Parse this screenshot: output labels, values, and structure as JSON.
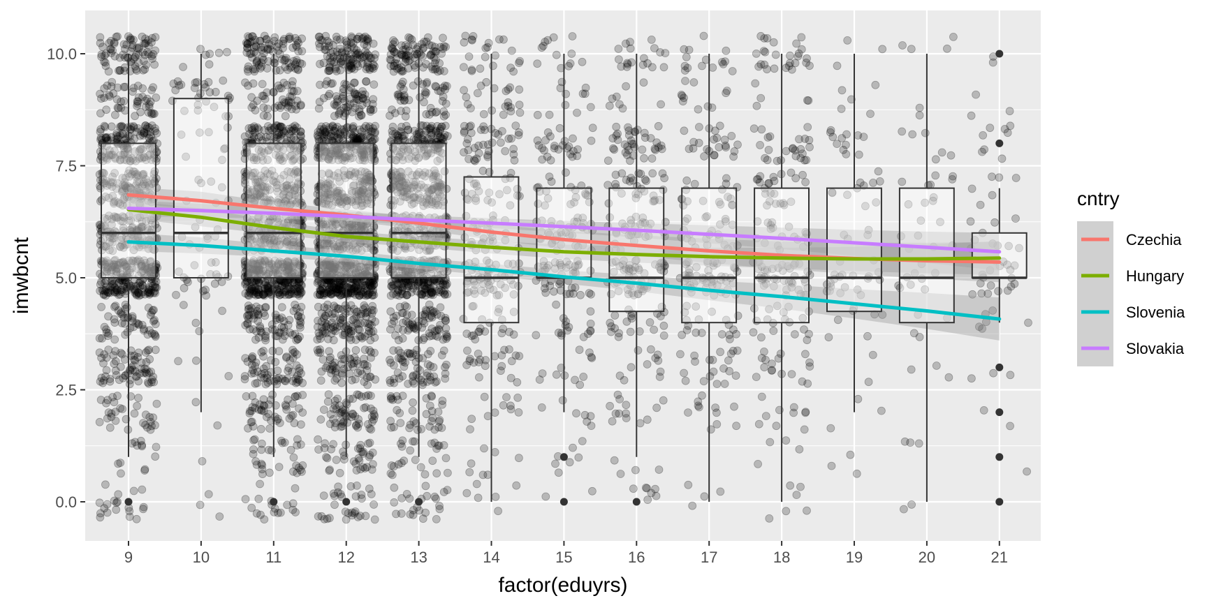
{
  "chart_data": {
    "type": "scatter",
    "overlays": [
      "boxplot",
      "jitter",
      "smooth-with-confidence-band"
    ],
    "xlabel": "factor(eduyrs)",
    "ylabel": "imwbcnt",
    "categories": [
      "9",
      "10",
      "11",
      "12",
      "13",
      "14",
      "15",
      "16",
      "17",
      "18",
      "19",
      "20",
      "21"
    ],
    "ylim": [
      -0.9,
      10.8
    ],
    "y_ticks": [
      0,
      2.5,
      5,
      7.5,
      10
    ],
    "y_tick_labels": [
      "0.0",
      "2.5",
      "5.0",
      "7.5",
      "10.0"
    ],
    "grid": true,
    "jitter_density": [
      900,
      90,
      1100,
      1400,
      1000,
      260,
      200,
      240,
      200,
      200,
      70,
      50,
      60
    ],
    "boxes": [
      {
        "x": "9",
        "min": 1,
        "q1": 5,
        "median": 6,
        "q3": 8,
        "max": 10,
        "outliers": [
          0
        ]
      },
      {
        "x": "10",
        "min": 2,
        "q1": 5,
        "median": 6,
        "q3": 9,
        "max": 10,
        "outliers": []
      },
      {
        "x": "11",
        "min": 1,
        "q1": 5,
        "median": 6,
        "q3": 8,
        "max": 10,
        "outliers": [
          0
        ]
      },
      {
        "x": "12",
        "min": 1,
        "q1": 5,
        "median": 6,
        "q3": 8,
        "max": 10,
        "outliers": [
          0
        ]
      },
      {
        "x": "13",
        "min": 1,
        "q1": 5,
        "median": 6,
        "q3": 8,
        "max": 10,
        "outliers": [
          0
        ]
      },
      {
        "x": "14",
        "min": 0,
        "q1": 4,
        "median": 5,
        "q3": 7.25,
        "max": 10,
        "outliers": []
      },
      {
        "x": "15",
        "min": 2,
        "q1": 5,
        "median": 5,
        "q3": 7,
        "max": 10,
        "outliers": [
          1,
          0
        ]
      },
      {
        "x": "16",
        "min": 1,
        "q1": 4.25,
        "median": 5,
        "q3": 7,
        "max": 10,
        "outliers": [
          0
        ]
      },
      {
        "x": "17",
        "min": 0,
        "q1": 4,
        "median": 5,
        "q3": 7,
        "max": 10,
        "outliers": []
      },
      {
        "x": "18",
        "min": 0,
        "q1": 4,
        "median": 5,
        "q3": 7,
        "max": 10,
        "outliers": []
      },
      {
        "x": "19",
        "min": 2,
        "q1": 4.25,
        "median": 5,
        "q3": 7,
        "max": 10,
        "outliers": []
      },
      {
        "x": "20",
        "min": 0,
        "q1": 4,
        "median": 5,
        "q3": 7,
        "max": 10,
        "outliers": []
      },
      {
        "x": "21",
        "min": 4,
        "q1": 5,
        "median": 5,
        "q3": 6,
        "max": 7,
        "outliers": [
          10,
          8,
          3,
          2,
          1,
          0
        ]
      }
    ],
    "series": [
      {
        "name": "Czechia",
        "color": "#F8766D",
        "values": [
          6.85,
          6.72,
          6.55,
          6.4,
          6.22,
          6.02,
          5.85,
          5.72,
          5.6,
          5.5,
          5.43,
          5.38,
          5.35
        ],
        "band": [
          0.18,
          0.2,
          0.14,
          0.12,
          0.14,
          0.17,
          0.2,
          0.23,
          0.27,
          0.31,
          0.35,
          0.4,
          0.45
        ]
      },
      {
        "name": "Hungary",
        "color": "#7CAE00",
        "values": [
          6.52,
          6.35,
          6.12,
          5.92,
          5.8,
          5.68,
          5.58,
          5.52,
          5.47,
          5.44,
          5.42,
          5.42,
          5.44
        ],
        "band": [
          0.2,
          0.2,
          0.15,
          0.12,
          0.12,
          0.14,
          0.16,
          0.18,
          0.2,
          0.23,
          0.27,
          0.32,
          0.38
        ]
      },
      {
        "name": "Slovenia",
        "color": "#00BFC4",
        "values": [
          5.8,
          5.72,
          5.6,
          5.48,
          5.32,
          5.18,
          5.02,
          4.88,
          4.72,
          4.58,
          4.42,
          4.26,
          4.08
        ],
        "band": [
          0.2,
          0.18,
          0.14,
          0.12,
          0.12,
          0.13,
          0.15,
          0.18,
          0.22,
          0.27,
          0.33,
          0.4,
          0.48
        ]
      },
      {
        "name": "Slovakia",
        "color": "#C77CFF",
        "values": [
          6.55,
          6.5,
          6.44,
          6.37,
          6.29,
          6.22,
          6.14,
          6.06,
          5.97,
          5.88,
          5.78,
          5.68,
          5.58
        ],
        "band": [
          0.18,
          0.15,
          0.12,
          0.1,
          0.1,
          0.11,
          0.13,
          0.16,
          0.2,
          0.24,
          0.29,
          0.35,
          0.42
        ]
      }
    ],
    "legend": {
      "title": "cntry",
      "position": "right",
      "labels": [
        "Czechia",
        "Hungary",
        "Slovenia",
        "Slovakia"
      ]
    }
  }
}
